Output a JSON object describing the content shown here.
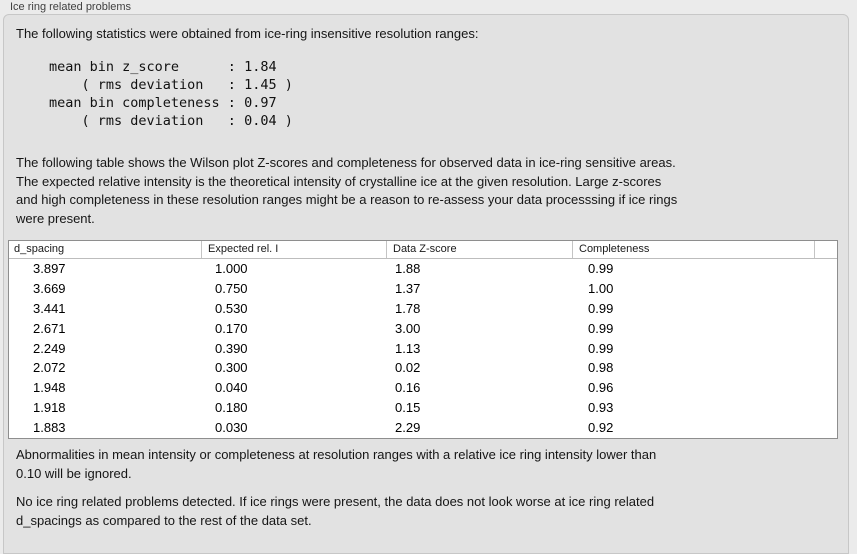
{
  "panel": {
    "title": "Ice ring related problems"
  },
  "intro": "The following statistics were obtained from ice-ring insensitive resolution ranges:",
  "stats_block": "mean bin z_score      : 1.84\n    ( rms deviation   : 1.45 )\nmean bin completeness : 0.97\n    ( rms deviation   : 0.04 )",
  "stats": {
    "mean_bin_z_score": "1.84",
    "z_score_rms_deviation": "1.45",
    "mean_bin_completeness": "0.97",
    "completeness_rms_deviation": "0.04"
  },
  "description": "The following table shows the Wilson plot Z-scores and completeness for observed data in ice-ring sensitive areas.\nThe expected relative intensity is the theoretical intensity of crystalline ice at the given resolution. Large z-scores\nand high completeness in these resolution ranges might be a reason to re-assess your data processsing if ice rings\nwere present.",
  "table": {
    "columns": [
      "d_spacing",
      "Expected rel. I",
      "Data Z-score",
      "Completeness"
    ],
    "rows": [
      [
        "3.897",
        "1.000",
        "1.88",
        "0.99"
      ],
      [
        "3.669",
        "0.750",
        "1.37",
        "1.00"
      ],
      [
        "3.441",
        "0.530",
        "1.78",
        "0.99"
      ],
      [
        "2.671",
        "0.170",
        "3.00",
        "0.99"
      ],
      [
        "2.249",
        "0.390",
        "1.13",
        "0.99"
      ],
      [
        "2.072",
        "0.300",
        "0.02",
        "0.98"
      ],
      [
        "1.948",
        "0.040",
        "0.16",
        "0.96"
      ],
      [
        "1.918",
        "0.180",
        "0.15",
        "0.93"
      ],
      [
        "1.883",
        "0.030",
        "2.29",
        "0.92"
      ]
    ]
  },
  "note_ignore": "Abnormalities in mean intensity or completeness at resolution ranges with a relative ice ring intensity lower than\n0.10 will be ignored.",
  "conclusion": "No ice ring related problems detected. If ice rings were present, the data does not look worse at ice ring related\nd_spacings as compared to the rest of the data set.",
  "colors": {
    "outer_background": "#ebebeb",
    "groupbox_background": "#e2e2e2",
    "groupbox_border": "#c7c7c7",
    "table_background": "#ffffff",
    "table_border": "#8e8e8e",
    "header_separator": "#c4c4c4",
    "text": "#121212"
  }
}
